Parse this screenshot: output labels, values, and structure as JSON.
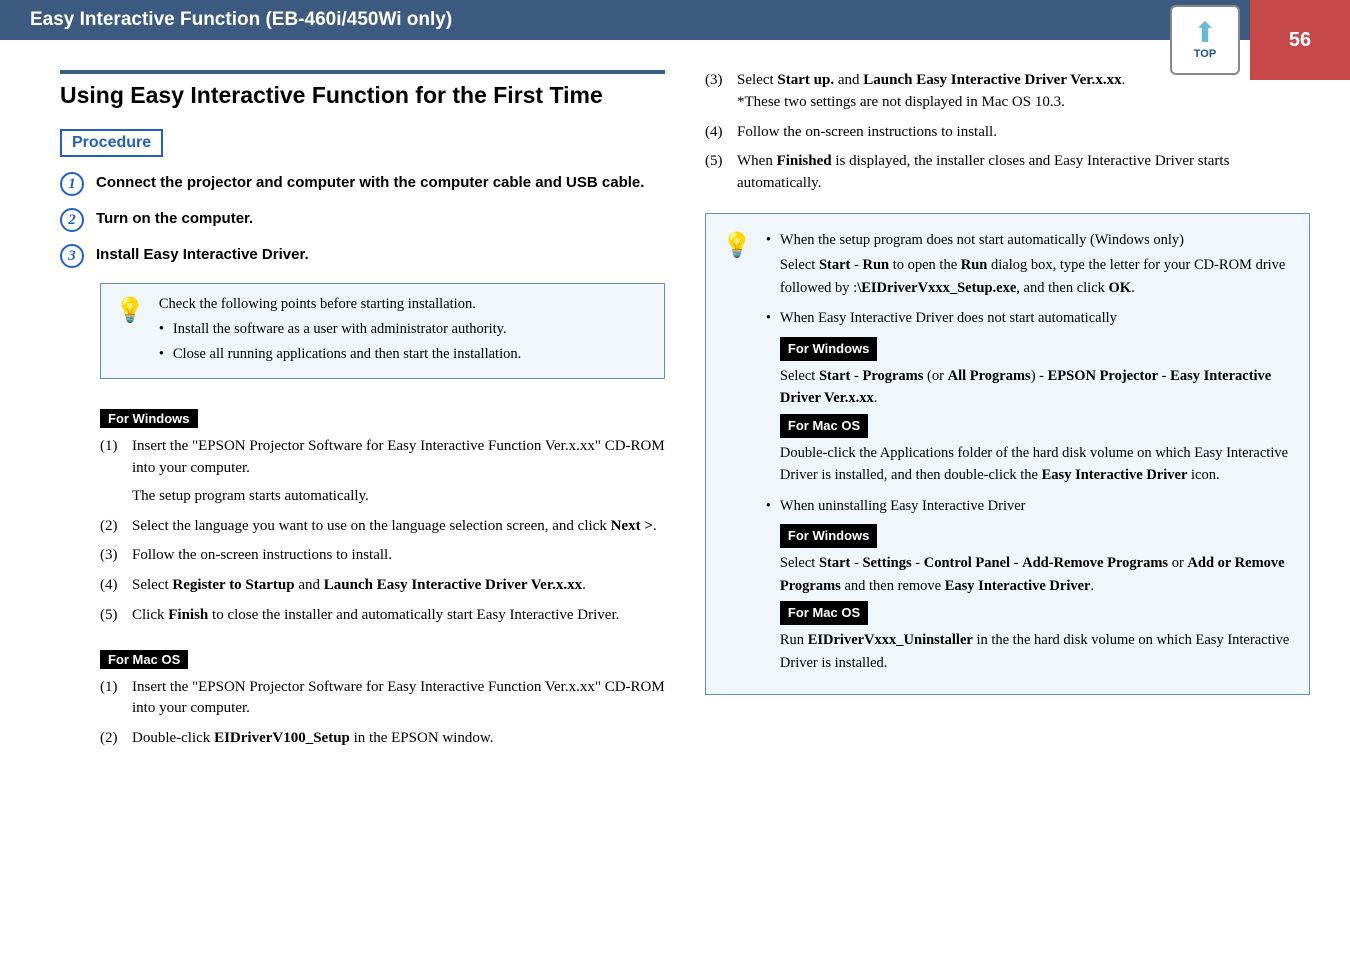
{
  "header": {
    "title": "Easy Interactive Function (EB-460i/450Wi only)",
    "page_number": "56",
    "top_label": "TOP"
  },
  "main_heading": "Using Easy Interactive Function for the First Time",
  "procedure_label": "Procedure",
  "steps": [
    {
      "num": "1",
      "text": "Connect the projector and computer with the computer cable and USB cable."
    },
    {
      "num": "2",
      "text": "Turn on the computer."
    },
    {
      "num": "3",
      "text": "Install Easy Interactive Driver."
    }
  ],
  "tip1": {
    "intro": "Check the following points before starting installation.",
    "bullets": [
      "Install the software as a user with administrator authority.",
      "Close all running applications and then start the installation."
    ]
  },
  "labels": {
    "for_windows": "For Windows",
    "for_mac": "For Mac OS"
  },
  "win_list": [
    {
      "n": "(1)",
      "t": "Insert the \"EPSON Projector Software for Easy Interactive Function Ver.x.xx\" CD-ROM into your computer.",
      "after": "The setup program starts automatically."
    },
    {
      "n": "(2)",
      "t": "Select the language you want to use on the language selection screen, and click <b>Next ></b>."
    },
    {
      "n": "(3)",
      "t": "Follow the on-screen instructions to install."
    },
    {
      "n": "(4)",
      "t": "Select <b>Register to Startup</b> and <b>Launch Easy Interactive Driver Ver.x.xx</b>."
    },
    {
      "n": "(5)",
      "t": "Click <b>Finish</b> to close the installer and automatically start Easy Interactive Driver."
    }
  ],
  "mac_list": [
    {
      "n": "(1)",
      "t": "Insert the \"EPSON Projector Software for Easy Interactive Function Ver.x.xx\" CD-ROM into your computer."
    },
    {
      "n": "(2)",
      "t": "Double-click <b>EIDriverV100_Setup</b> in the EPSON window."
    }
  ],
  "right_list": [
    {
      "n": "(3)",
      "t": "Select <b>Start up.</b> and <b>Launch Easy Interactive Driver Ver.x.xx</b>.",
      "after": "*These two settings are not displayed in Mac OS 10.3."
    },
    {
      "n": "(4)",
      "t": "Follow the on-screen instructions to install."
    },
    {
      "n": "(5)",
      "t": "When <b>Finished</b> is displayed, the installer closes and Easy Interactive Driver starts automatically."
    }
  ],
  "tip2": {
    "b1": "When the setup program does not start automatically (Windows only)",
    "b1_detail": "Select <b>Start</b> - <b>Run</b> to open the <b>Run</b> dialog box, type the letter for your CD-ROM drive followed by :<b>\\EIDriverVxxx_Setup.exe</b>, and then click <b>OK</b>.",
    "b2": "When Easy Interactive Driver does not start automatically",
    "b2_win": "Select <b>Start</b> - <b>Programs</b> (or <b>All Programs</b>) - <b>EPSON Projector</b> - <b>Easy Interactive Driver Ver.x.xx</b>.",
    "b2_mac": "Double-click the Applications folder of the hard disk volume on which Easy Interactive Driver is installed, and then double-click the <b>Easy Interactive Driver</b> icon.",
    "b3": "When uninstalling Easy Interactive Driver",
    "b3_win": "Select <b>Start</b> - <b>Settings</b> - <b>Control Panel</b> - <b>Add-Remove Programs</b> or <b>Add or Remove Programs</b> and then remove <b>Easy Interactive Driver</b>.",
    "b3_mac": "Run <b>EIDriverVxxx_Uninstaller</b> in the the hard disk volume on which Easy Interactive Driver is installed."
  }
}
